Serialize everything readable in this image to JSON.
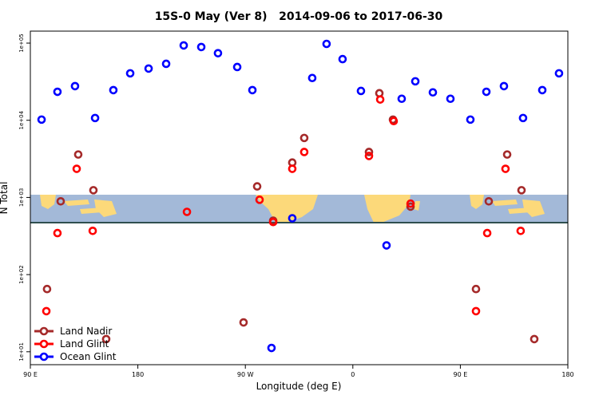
{
  "chart_data": {
    "type": "scatter",
    "title": "15S-0 May (Ver 8)   2014-09-06 to 2017-06-30",
    "x_label": "Longitude (deg E)",
    "y_label": "N Total",
    "xlim": [
      90,
      540
    ],
    "xticks": [
      {
        "value": 90,
        "label": "90 E"
      },
      {
        "value": 180,
        "label": "180"
      },
      {
        "value": 270,
        "label": "90 W"
      },
      {
        "value": 360,
        "label": "0"
      },
      {
        "value": 450,
        "label": "90 E"
      },
      {
        "value": 540,
        "label": "180"
      }
    ],
    "ylim": [
      6.8,
      143000
    ],
    "log_y": true,
    "yticks": [
      {
        "value": 10,
        "label": "1e+01"
      },
      {
        "value": 100,
        "label": "1e+02"
      },
      {
        "value": 1000,
        "label": "1e+03"
      },
      {
        "value": 10000,
        "label": "1e+04"
      },
      {
        "value": 100000,
        "label": "1e+05"
      }
    ],
    "legend": "bottom left",
    "series": [
      {
        "name": "Land Nadir",
        "color": "#a52a2a",
        "x": [
          104,
          115.4,
          130.1,
          142.8,
          153.5,
          268.5,
          279.9,
          293.3,
          309.3,
          319.3,
          373.5,
          382.2,
          393.6,
          408.3,
          463.1,
          473.8,
          489.2,
          501.2,
          511.9
        ],
        "values": [
          65,
          890,
          3600,
          1240,
          14.6,
          24,
          1390,
          500,
          2830,
          5900,
          3880,
          22400,
          10200,
          760,
          65,
          890,
          3600,
          1240,
          14.6
        ]
      },
      {
        "name": "Land Glint",
        "color": "#ff0000",
        "x": [
          103.4,
          112.7,
          128.8,
          142.2,
          221.1,
          281.9,
          293.3,
          309.3,
          319.3,
          373.5,
          382.9,
          394.2,
          408.3,
          463.1,
          472.5,
          487.8,
          500.5
        ],
        "values": [
          33.6,
          345,
          2350,
          369,
          650,
          933,
          480,
          2350,
          3880,
          3450,
          18600,
          9770,
          830,
          33.6,
          345,
          2350,
          369
        ]
      },
      {
        "name": "Ocean Glint",
        "color": "#0000ff",
        "x": [
          99.4,
          112.7,
          127.4,
          144.2,
          159.5,
          173.6,
          189,
          203.7,
          218.4,
          233.1,
          247.1,
          263.2,
          275.9,
          291.9,
          309.3,
          326,
          338,
          351.4,
          366.8,
          388.2,
          400.9,
          412.3,
          427,
          441.7,
          458.4,
          471.8,
          486.5,
          502.5,
          518.6,
          532.6
        ],
        "values": [
          10200,
          23400,
          27700,
          10700,
          24600,
          40600,
          46800,
          53900,
          93300,
          89000,
          74000,
          49000,
          24600,
          11.2,
          537,
          35300,
          97700,
          62000,
          24000,
          239,
          19000,
          32000,
          23000,
          19000,
          10200,
          23400,
          27700,
          10700,
          24600,
          40600
        ]
      }
    ]
  }
}
